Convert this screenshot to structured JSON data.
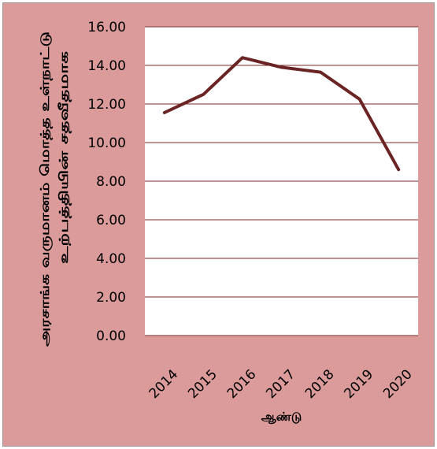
{
  "chart_data": {
    "type": "line",
    "categories": [
      "2014",
      "2015",
      "2016",
      "2017",
      "2018",
      "2019",
      "2020"
    ],
    "series": [
      {
        "values": [
          11.55,
          12.5,
          14.4,
          13.9,
          13.65,
          12.25,
          8.6
        ]
      }
    ],
    "xlabel": "ஆண்டு",
    "ylabel_lines": [
      "அரசாங்க வருமானம் மொத்த உள்நாட்டு",
      "உற்பத்தியின் சதவீதமாக"
    ],
    "ylim": [
      0,
      16
    ],
    "yticks": [
      "0.00",
      "2.00",
      "4.00",
      "6.00",
      "8.00",
      "10.00",
      "12.00",
      "14.00",
      "16.00"
    ],
    "grid": true,
    "legend": "none",
    "colors": {
      "background": "#db9b9b",
      "plot_area": "#ffffff",
      "gridline": "#7a2a2a",
      "series_line": "#6b2424",
      "border": "#9a9a9a"
    }
  }
}
